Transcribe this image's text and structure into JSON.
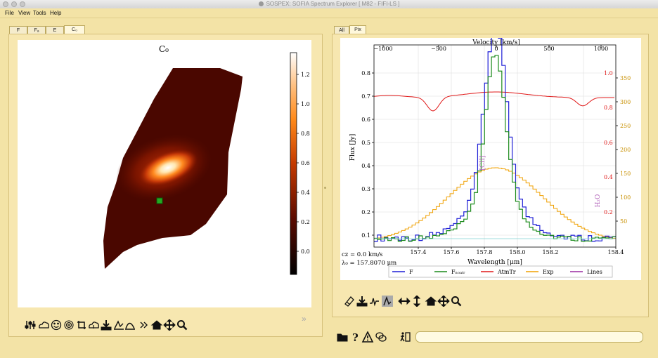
{
  "window": {
    "title": "SOSPEX: SOFIA Spectrum Explorer [ M82 - FIFI-LS ]"
  },
  "menu": {
    "file": "File",
    "view": "View",
    "tools": "Tools",
    "help": "Help"
  },
  "left_tabs": [
    "F",
    "Fₐ",
    "E",
    "C₀"
  ],
  "right_tabs": [
    "All",
    "Pix"
  ],
  "image": {
    "title": "C₀",
    "colorbar_ticks": [
      "1.2",
      "1.0",
      "0.8",
      "0.6",
      "0.4",
      "0.2",
      "0.0"
    ]
  },
  "collapse_glyph": "»",
  "spectrum": {
    "top_axis_label": "Velocity [km/s]",
    "top_ticks": [
      "−1000",
      "−500",
      "0",
      "500",
      "1000"
    ],
    "x_label": "Wavelength [μm]",
    "x_ticks": [
      "157.4",
      "157.6",
      "157.8",
      "158.0",
      "158.2",
      "158.4"
    ],
    "y_label": "Flux [Jy]",
    "y_ticks": [
      "0.8",
      "0.7",
      "0.6",
      "0.5",
      "0.4",
      "0.3",
      "0.2",
      "0.1"
    ],
    "red_ticks": [
      "1.0",
      "0.8",
      "0.6",
      "0.4",
      "0.2"
    ],
    "orange_ticks": [
      "350",
      "300",
      "250",
      "200",
      "150",
      "100",
      "50"
    ],
    "line_label_cii": "[CII]",
    "line_label_h2o": "H₂O",
    "cz_text": "cz = 0.0 km/s",
    "lambda_text": "λ₀ = 157.8070 μm",
    "legend": [
      {
        "label": "F",
        "color": "#1f1fd6"
      },
      {
        "label": "Fₙₒₐₜᵣ",
        "color": "#1a8a1a"
      },
      {
        "label": "AtmTr",
        "color": "#e01818"
      },
      {
        "label": "Exp",
        "color": "#f0a000"
      },
      {
        "label": "Lines",
        "color": "#9a2aa0"
      }
    ]
  },
  "colors": {
    "background": "#f3e3a6",
    "panel": "#f7e7b0",
    "flux": "#1f1fd6",
    "flux_noatm": "#1a8a1a",
    "atm": "#e01818",
    "exp": "#f0a000",
    "lines": "#9a2aa0"
  },
  "toolbars": {
    "left": [
      "sliders-icon",
      "cloud-icon",
      "smiley-icon",
      "fingerprint-icon",
      "crop-icon",
      "cloud-outline-icon",
      "download-icon",
      "slice-icon",
      "fit-icon",
      "more-icon",
      "home-icon",
      "pan-icon",
      "zoom-icon"
    ],
    "right": [
      "eraser-icon",
      "download-icon",
      "spectrum-fit-icon",
      "guess-icon",
      "h-arrows-icon",
      "v-arrows-icon",
      "home-icon",
      "pan-icon",
      "zoom-icon"
    ],
    "bottom": [
      "folder-icon",
      "help-icon",
      "warning-icon",
      "coins-icon",
      "exit-icon"
    ]
  }
}
